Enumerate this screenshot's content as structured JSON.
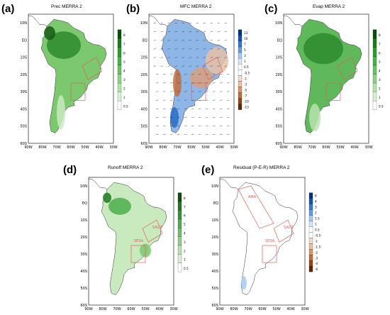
{
  "lat_labels": [
    "10N",
    "EQ",
    "10S",
    "20S",
    "30S",
    "40S",
    "50S",
    "60S"
  ],
  "lon_labels": [
    "90W",
    "80W",
    "70W",
    "60W",
    "50W",
    "40W",
    "30W"
  ],
  "region_labels": {
    "sesa": "SESA",
    "sacz": "SACZ",
    "ama": "AMA"
  },
  "colors": {
    "green_dark": "#1f7a1f",
    "green_mid": "#4cae4c",
    "green_light": "#a9dea0",
    "blue_dark": "#1c4fa8",
    "blue_light": "#a9c9ec",
    "brown_dark": "#6b3310",
    "brown_light": "#e6c0a8",
    "box": "#e0605a"
  },
  "panels": [
    {
      "id": "a",
      "letter": "(a)",
      "title": "Prec MERRA 2",
      "scale": [
        "8",
        "7",
        "6",
        "5",
        "4",
        "3",
        "2",
        "1",
        "0.5"
      ]
    },
    {
      "id": "b",
      "letter": "(b)",
      "title": "MFC MERRA 2",
      "scale": [
        "13",
        "10",
        "7",
        "5",
        "3",
        "1",
        "0.5",
        "-0.5",
        "-1",
        "-3",
        "-5",
        "-7",
        "-10",
        "-13"
      ]
    },
    {
      "id": "c",
      "letter": "(c)",
      "title": "Evap MERRA 2",
      "scale": [
        "8",
        "7",
        "6",
        "5",
        "4",
        "3",
        "2",
        "1",
        "0.5"
      ]
    },
    {
      "id": "d",
      "letter": "(d)",
      "title": "Runoff MERRA 2",
      "scale": [
        "8",
        "7",
        "6",
        "5",
        "4",
        "3",
        "2",
        "1",
        "0.5"
      ]
    },
    {
      "id": "e",
      "letter": "(e)",
      "title": "Residual (P-E-R) MERRA 2",
      "scale": [
        "6",
        "4",
        "3",
        "2",
        "1.5",
        "1",
        "0.5",
        "-0.5",
        "-1",
        "-1.5",
        "-2",
        "-3",
        "-4",
        "-6"
      ]
    }
  ]
}
